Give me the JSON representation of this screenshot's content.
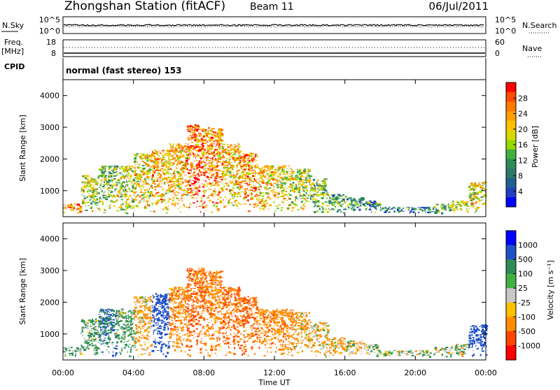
{
  "header": {
    "station": "Zhongshan Station (fitACF)",
    "beam": "Beam 11",
    "date": "06/Jul/2011"
  },
  "top_panels": {
    "nsky_label": "N.Sky",
    "nsky_ticks": [
      "10^5",
      "10^0"
    ],
    "nsearch_label": "N.Search",
    "nsearch_ticks": [
      "10^5",
      "10^0"
    ],
    "freq_label": "Freq.",
    "freq_unit": "[MHz]",
    "freq_ticks": [
      "18",
      "8"
    ],
    "nave_label": "Nave",
    "nave_ticks": [
      "60",
      "0"
    ],
    "cpid_label": "CPID",
    "cpid_text": "normal (fast stereo) 153"
  },
  "colorbars": {
    "power": {
      "label": "Power [dB]",
      "ticks": [
        "28",
        "24",
        "20",
        "16",
        "12",
        "8",
        "4"
      ],
      "colors": [
        "#ff0000",
        "#ff4a00",
        "#ff7a00",
        "#ffa000",
        "#ffc000",
        "#d8d800",
        "#98d800",
        "#40b040",
        "#2e8b57",
        "#2a7a6a",
        "#1e6090",
        "#1e40c0",
        "#0000ff"
      ]
    },
    "velocity": {
      "label": "Velocity [m s⁻¹]",
      "ticks": [
        "1000",
        "500",
        "100",
        "25",
        "-25",
        "-100",
        "-500",
        "-1000"
      ],
      "colors": [
        "#0000ff",
        "#1e50c8",
        "#2e8b57",
        "#40b040",
        "#c8c8c8",
        "#ffc000",
        "#ff8c00",
        "#ff4500",
        "#ff0000"
      ]
    }
  },
  "chart_data": [
    {
      "type": "heatmap",
      "title": "Power",
      "xlabel": "Time UT",
      "ylabel": "Slant Range [km]",
      "x_ticks": [
        "00:00",
        "04:00",
        "08:00",
        "12:00",
        "16:00",
        "20:00",
        "00:00"
      ],
      "y_ticks": [
        "4000",
        "3000",
        "2000",
        "1000"
      ],
      "xlim_hours": [
        0,
        24
      ],
      "ylim_km": [
        180,
        4500
      ],
      "scatter_extent_by_hour": [
        {
          "hour": 0,
          "range_km": [
            300,
            600
          ],
          "power_db": 24
        },
        {
          "hour": 1,
          "range_km": [
            300,
            1500
          ],
          "power_db": 16
        },
        {
          "hour": 2,
          "range_km": [
            300,
            1800
          ],
          "power_db": 14
        },
        {
          "hour": 3,
          "range_km": [
            300,
            1800
          ],
          "power_db": 16
        },
        {
          "hour": 4,
          "range_km": [
            300,
            2200
          ],
          "power_db": 18
        },
        {
          "hour": 5,
          "range_km": [
            300,
            2300
          ],
          "power_db": 20
        },
        {
          "hour": 6,
          "range_km": [
            300,
            2500
          ],
          "power_db": 20
        },
        {
          "hour": 7,
          "range_km": [
            300,
            3100
          ],
          "power_db": 24
        },
        {
          "hour": 8,
          "range_km": [
            300,
            3000
          ],
          "power_db": 22
        },
        {
          "hour": 9,
          "range_km": [
            300,
            2500
          ],
          "power_db": 20
        },
        {
          "hour": 10,
          "range_km": [
            300,
            2200
          ],
          "power_db": 22
        },
        {
          "hour": 11,
          "range_km": [
            300,
            1800
          ],
          "power_db": 20
        },
        {
          "hour": 12,
          "range_km": [
            300,
            1800
          ],
          "power_db": 18
        },
        {
          "hour": 13,
          "range_km": [
            300,
            1700
          ],
          "power_db": 16
        },
        {
          "hour": 14,
          "range_km": [
            300,
            1400
          ],
          "power_db": 14
        },
        {
          "hour": 15,
          "range_km": [
            300,
            900
          ],
          "power_db": 12
        },
        {
          "hour": 16,
          "range_km": [
            300,
            800
          ],
          "power_db": 10
        },
        {
          "hour": 17,
          "range_km": [
            300,
            700
          ],
          "power_db": 10
        },
        {
          "hour": 18,
          "range_km": [
            300,
            500
          ],
          "power_db": 8
        },
        {
          "hour": 19,
          "range_km": [
            300,
            500
          ],
          "power_db": 8
        },
        {
          "hour": 20,
          "range_km": [
            300,
            500
          ],
          "power_db": 8
        },
        {
          "hour": 21,
          "range_km": [
            300,
            600
          ],
          "power_db": 12
        },
        {
          "hour": 22,
          "range_km": [
            300,
            700
          ],
          "power_db": 16
        },
        {
          "hour": 23,
          "range_km": [
            300,
            1300
          ],
          "power_db": 18
        }
      ]
    },
    {
      "type": "heatmap",
      "title": "Velocity",
      "xlabel": "Time UT",
      "ylabel": "Slant Range [km]",
      "x_ticks": [
        "00:00",
        "04:00",
        "08:00",
        "12:00",
        "16:00",
        "20:00",
        "00:00"
      ],
      "y_ticks": [
        "4000",
        "3000",
        "2000",
        "1000"
      ],
      "xlim_hours": [
        0,
        24
      ],
      "ylim_km": [
        180,
        4500
      ],
      "scatter_extent_by_hour": [
        {
          "hour": 0,
          "range_km": [
            300,
            600
          ],
          "velocity_ms": 100
        },
        {
          "hour": 1,
          "range_km": [
            300,
            1500
          ],
          "velocity_ms": 100
        },
        {
          "hour": 2,
          "range_km": [
            300,
            1800
          ],
          "velocity_ms": 300
        },
        {
          "hour": 3,
          "range_km": [
            300,
            1800
          ],
          "velocity_ms": 100
        },
        {
          "hour": 4,
          "range_km": [
            300,
            2200
          ],
          "velocity_ms": -100
        },
        {
          "hour": 5,
          "range_km": [
            300,
            2300
          ],
          "velocity_ms": 500
        },
        {
          "hour": 6,
          "range_km": [
            300,
            2500
          ],
          "velocity_ms": -200
        },
        {
          "hour": 7,
          "range_km": [
            300,
            3100
          ],
          "velocity_ms": -300
        },
        {
          "hour": 8,
          "range_km": [
            300,
            3000
          ],
          "velocity_ms": -200
        },
        {
          "hour": 9,
          "range_km": [
            300,
            2500
          ],
          "velocity_ms": -300
        },
        {
          "hour": 10,
          "range_km": [
            300,
            2200
          ],
          "velocity_ms": -300
        },
        {
          "hour": 11,
          "range_km": [
            300,
            1800
          ],
          "velocity_ms": -200
        },
        {
          "hour": 12,
          "range_km": [
            300,
            1800
          ],
          "velocity_ms": -200
        },
        {
          "hour": 13,
          "range_km": [
            300,
            1700
          ],
          "velocity_ms": -100
        },
        {
          "hour": 14,
          "range_km": [
            300,
            1400
          ],
          "velocity_ms": -100
        },
        {
          "hour": 15,
          "range_km": [
            300,
            900
          ],
          "velocity_ms": -100
        },
        {
          "hour": 16,
          "range_km": [
            300,
            800
          ],
          "velocity_ms": -50
        },
        {
          "hour": 17,
          "range_km": [
            300,
            700
          ],
          "velocity_ms": 50
        },
        {
          "hour": 18,
          "range_km": [
            300,
            500
          ],
          "velocity_ms": 50
        },
        {
          "hour": 19,
          "range_km": [
            300,
            500
          ],
          "velocity_ms": 50
        },
        {
          "hour": 20,
          "range_km": [
            300,
            500
          ],
          "velocity_ms": 50
        },
        {
          "hour": 21,
          "range_km": [
            300,
            600
          ],
          "velocity_ms": 50
        },
        {
          "hour": 22,
          "range_km": [
            300,
            700
          ],
          "velocity_ms": 50
        },
        {
          "hour": 23,
          "range_km": [
            300,
            1300
          ],
          "velocity_ms": 500
        }
      ]
    }
  ]
}
